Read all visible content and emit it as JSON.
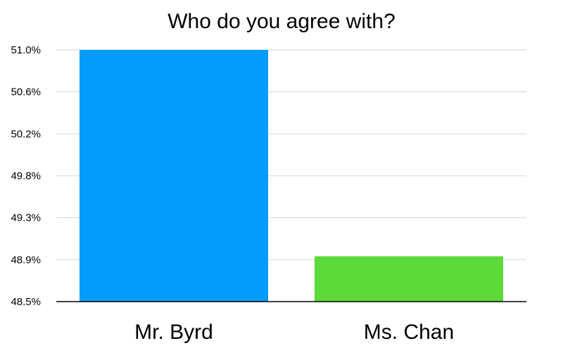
{
  "chart_data": {
    "type": "bar",
    "title": "Who do you agree with?",
    "categories": [
      "Mr. Byrd",
      "Ms. Chan"
    ],
    "values": [
      51.0,
      48.95
    ],
    "colors": [
      "#039BFC",
      "#5ED93A"
    ],
    "yticks": [
      "48.5%",
      "48.9%",
      "49.3%",
      "49.8%",
      "50.2%",
      "50.6%",
      "51.0%"
    ],
    "ylim": [
      48.5,
      51.0
    ],
    "grid": true,
    "legend": "none"
  }
}
